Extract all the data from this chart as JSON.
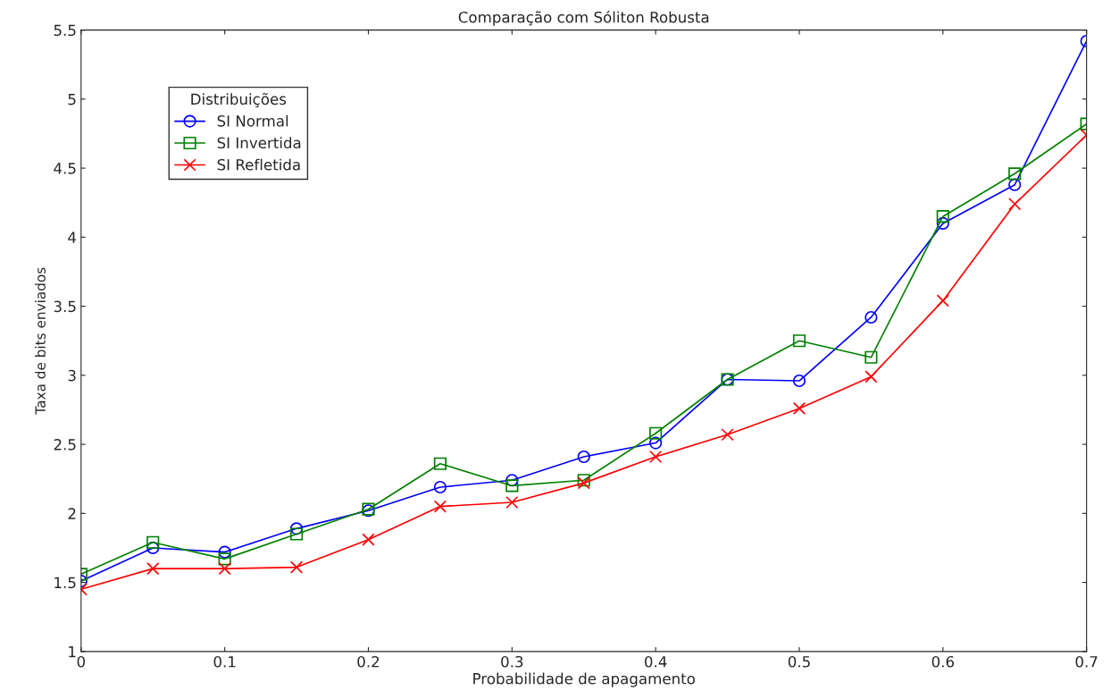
{
  "chart_data": {
    "type": "line",
    "title": "Comparação com Sóliton Robusta",
    "xlabel": "Probabilidade de apagamento",
    "ylabel": "Taxa de bits enviados",
    "legend_title": "Distribuições",
    "x": [
      0,
      0.05,
      0.1,
      0.15,
      0.2,
      0.25,
      0.3,
      0.35,
      0.4,
      0.45,
      0.5,
      0.55,
      0.6,
      0.65,
      0.7
    ],
    "series": [
      {
        "name": "SI Normal",
        "color": "#0000ff",
        "marker": "circle",
        "values": [
          1.51,
          1.75,
          1.72,
          1.89,
          2.02,
          2.19,
          2.24,
          2.41,
          2.51,
          2.97,
          2.96,
          3.42,
          4.1,
          4.38,
          5.42
        ]
      },
      {
        "name": "SI Invertida",
        "color": "#008000",
        "marker": "square",
        "values": [
          1.56,
          1.79,
          1.67,
          1.85,
          2.03,
          2.36,
          2.2,
          2.24,
          2.58,
          2.97,
          3.25,
          3.13,
          4.15,
          4.46,
          4.82
        ]
      },
      {
        "name": "SI Refletida",
        "color": "#ff0000",
        "marker": "cross",
        "values": [
          1.45,
          1.6,
          1.6,
          1.61,
          1.81,
          2.05,
          2.08,
          2.22,
          2.41,
          2.57,
          2.76,
          2.99,
          3.54,
          4.24,
          4.74
        ]
      }
    ],
    "xlim": [
      0,
      0.7
    ],
    "xticks": [
      {
        "value": 0,
        "label": "0"
      },
      0.1,
      0.2,
      0.3,
      0.4,
      0.5,
      0.6,
      0.7
    ],
    "ylim": [
      1,
      5.5
    ],
    "yticks": [
      1,
      1.5,
      2,
      2.5,
      3,
      3.5,
      4,
      4.5,
      5,
      5.5
    ],
    "grid": false,
    "legend": "top left",
    "line_style": "solid"
  }
}
